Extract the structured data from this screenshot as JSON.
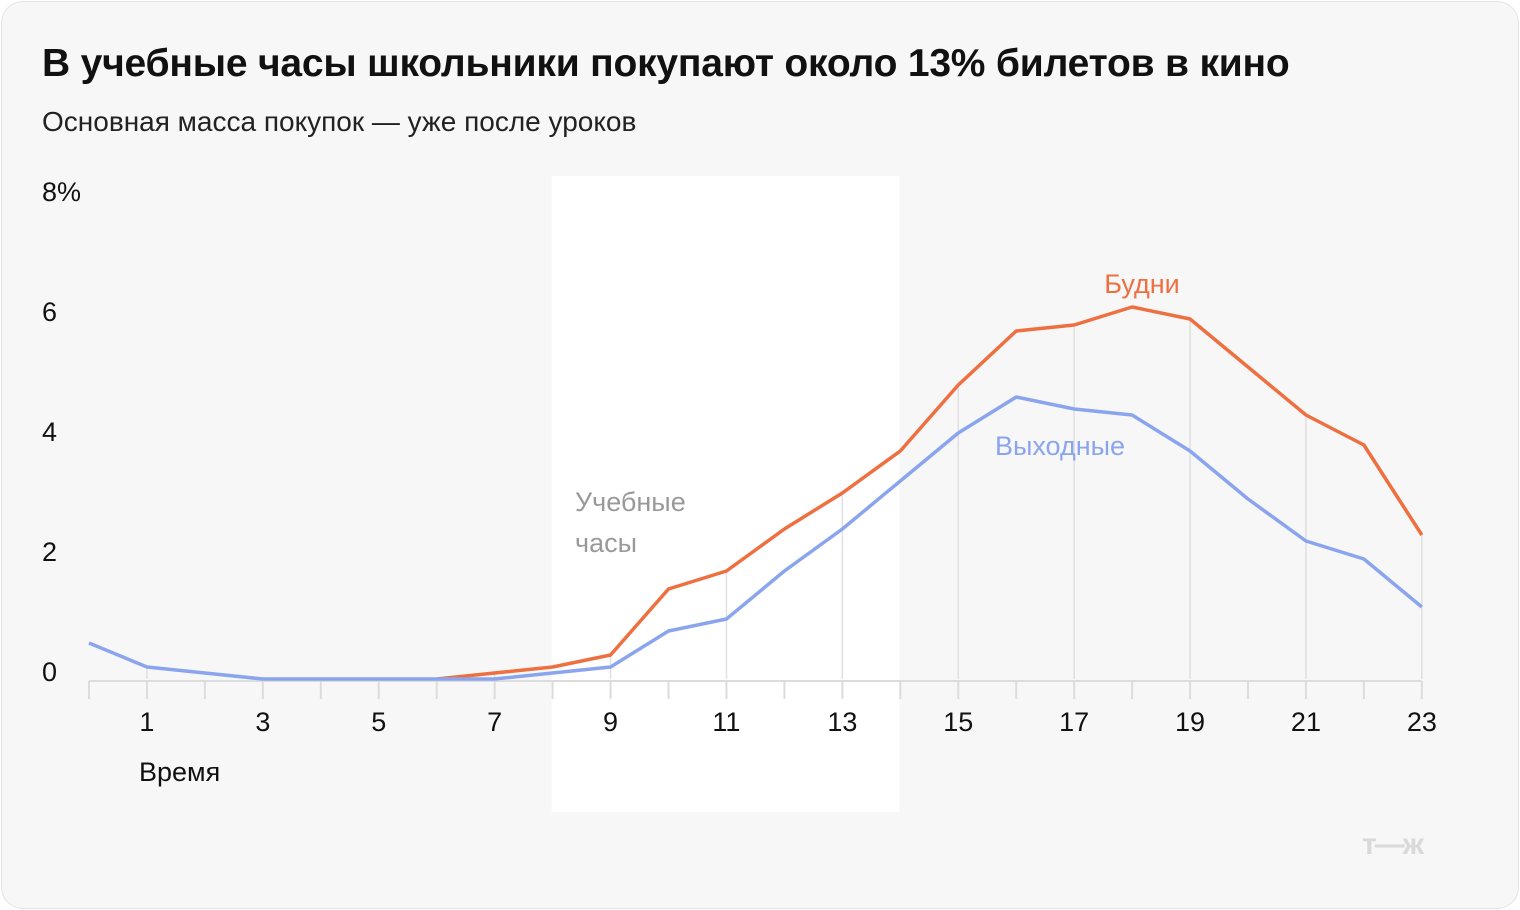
{
  "title": "В учебные часы школьники покупают около 13% билетов в кино",
  "subtitle": "Основная масса покупок — уже после уроков",
  "logo": "т—ж",
  "chart_data": {
    "type": "line",
    "title": "В учебные часы школьники покупают около 13% билетов в кино",
    "subtitle": "Основная масса покупок — уже после уроков",
    "xlabel": "Время",
    "ylabel": "",
    "x": [
      0,
      1,
      2,
      3,
      4,
      5,
      6,
      7,
      8,
      9,
      10,
      11,
      12,
      13,
      14,
      15,
      16,
      17,
      18,
      19,
      20,
      21,
      22,
      23
    ],
    "x_ticks": [
      "1",
      "3",
      "5",
      "7",
      "9",
      "11",
      "13",
      "15",
      "17",
      "19",
      "21",
      "23"
    ],
    "y_ticks": [
      "0",
      "2",
      "4",
      "6",
      "8%"
    ],
    "ylim": [
      0,
      8
    ],
    "xlim": [
      0,
      23
    ],
    "grid": false,
    "highlight": {
      "label_line1": "Учебные",
      "label_line2": "часы",
      "from": 8,
      "to": 14
    },
    "series": [
      {
        "name": "Будни",
        "color": "#ee6f3f",
        "values": [
          null,
          null,
          null,
          null,
          null,
          null,
          0,
          0.1,
          0.2,
          0.4,
          1.5,
          1.8,
          2.5,
          3.1,
          3.8,
          4.9,
          5.8,
          5.9,
          6.2,
          6.0,
          5.2,
          4.4,
          3.9,
          2.4
        ]
      },
      {
        "name": "Выходные",
        "color": "#8aa5ee",
        "values": [
          0.6,
          0.2,
          0.1,
          0,
          0,
          0,
          0,
          0,
          0.1,
          0.2,
          0.8,
          1.0,
          1.8,
          2.5,
          3.3,
          4.1,
          4.7,
          4.5,
          4.4,
          3.8,
          3.0,
          2.3,
          2.0,
          1.2
        ]
      }
    ]
  }
}
